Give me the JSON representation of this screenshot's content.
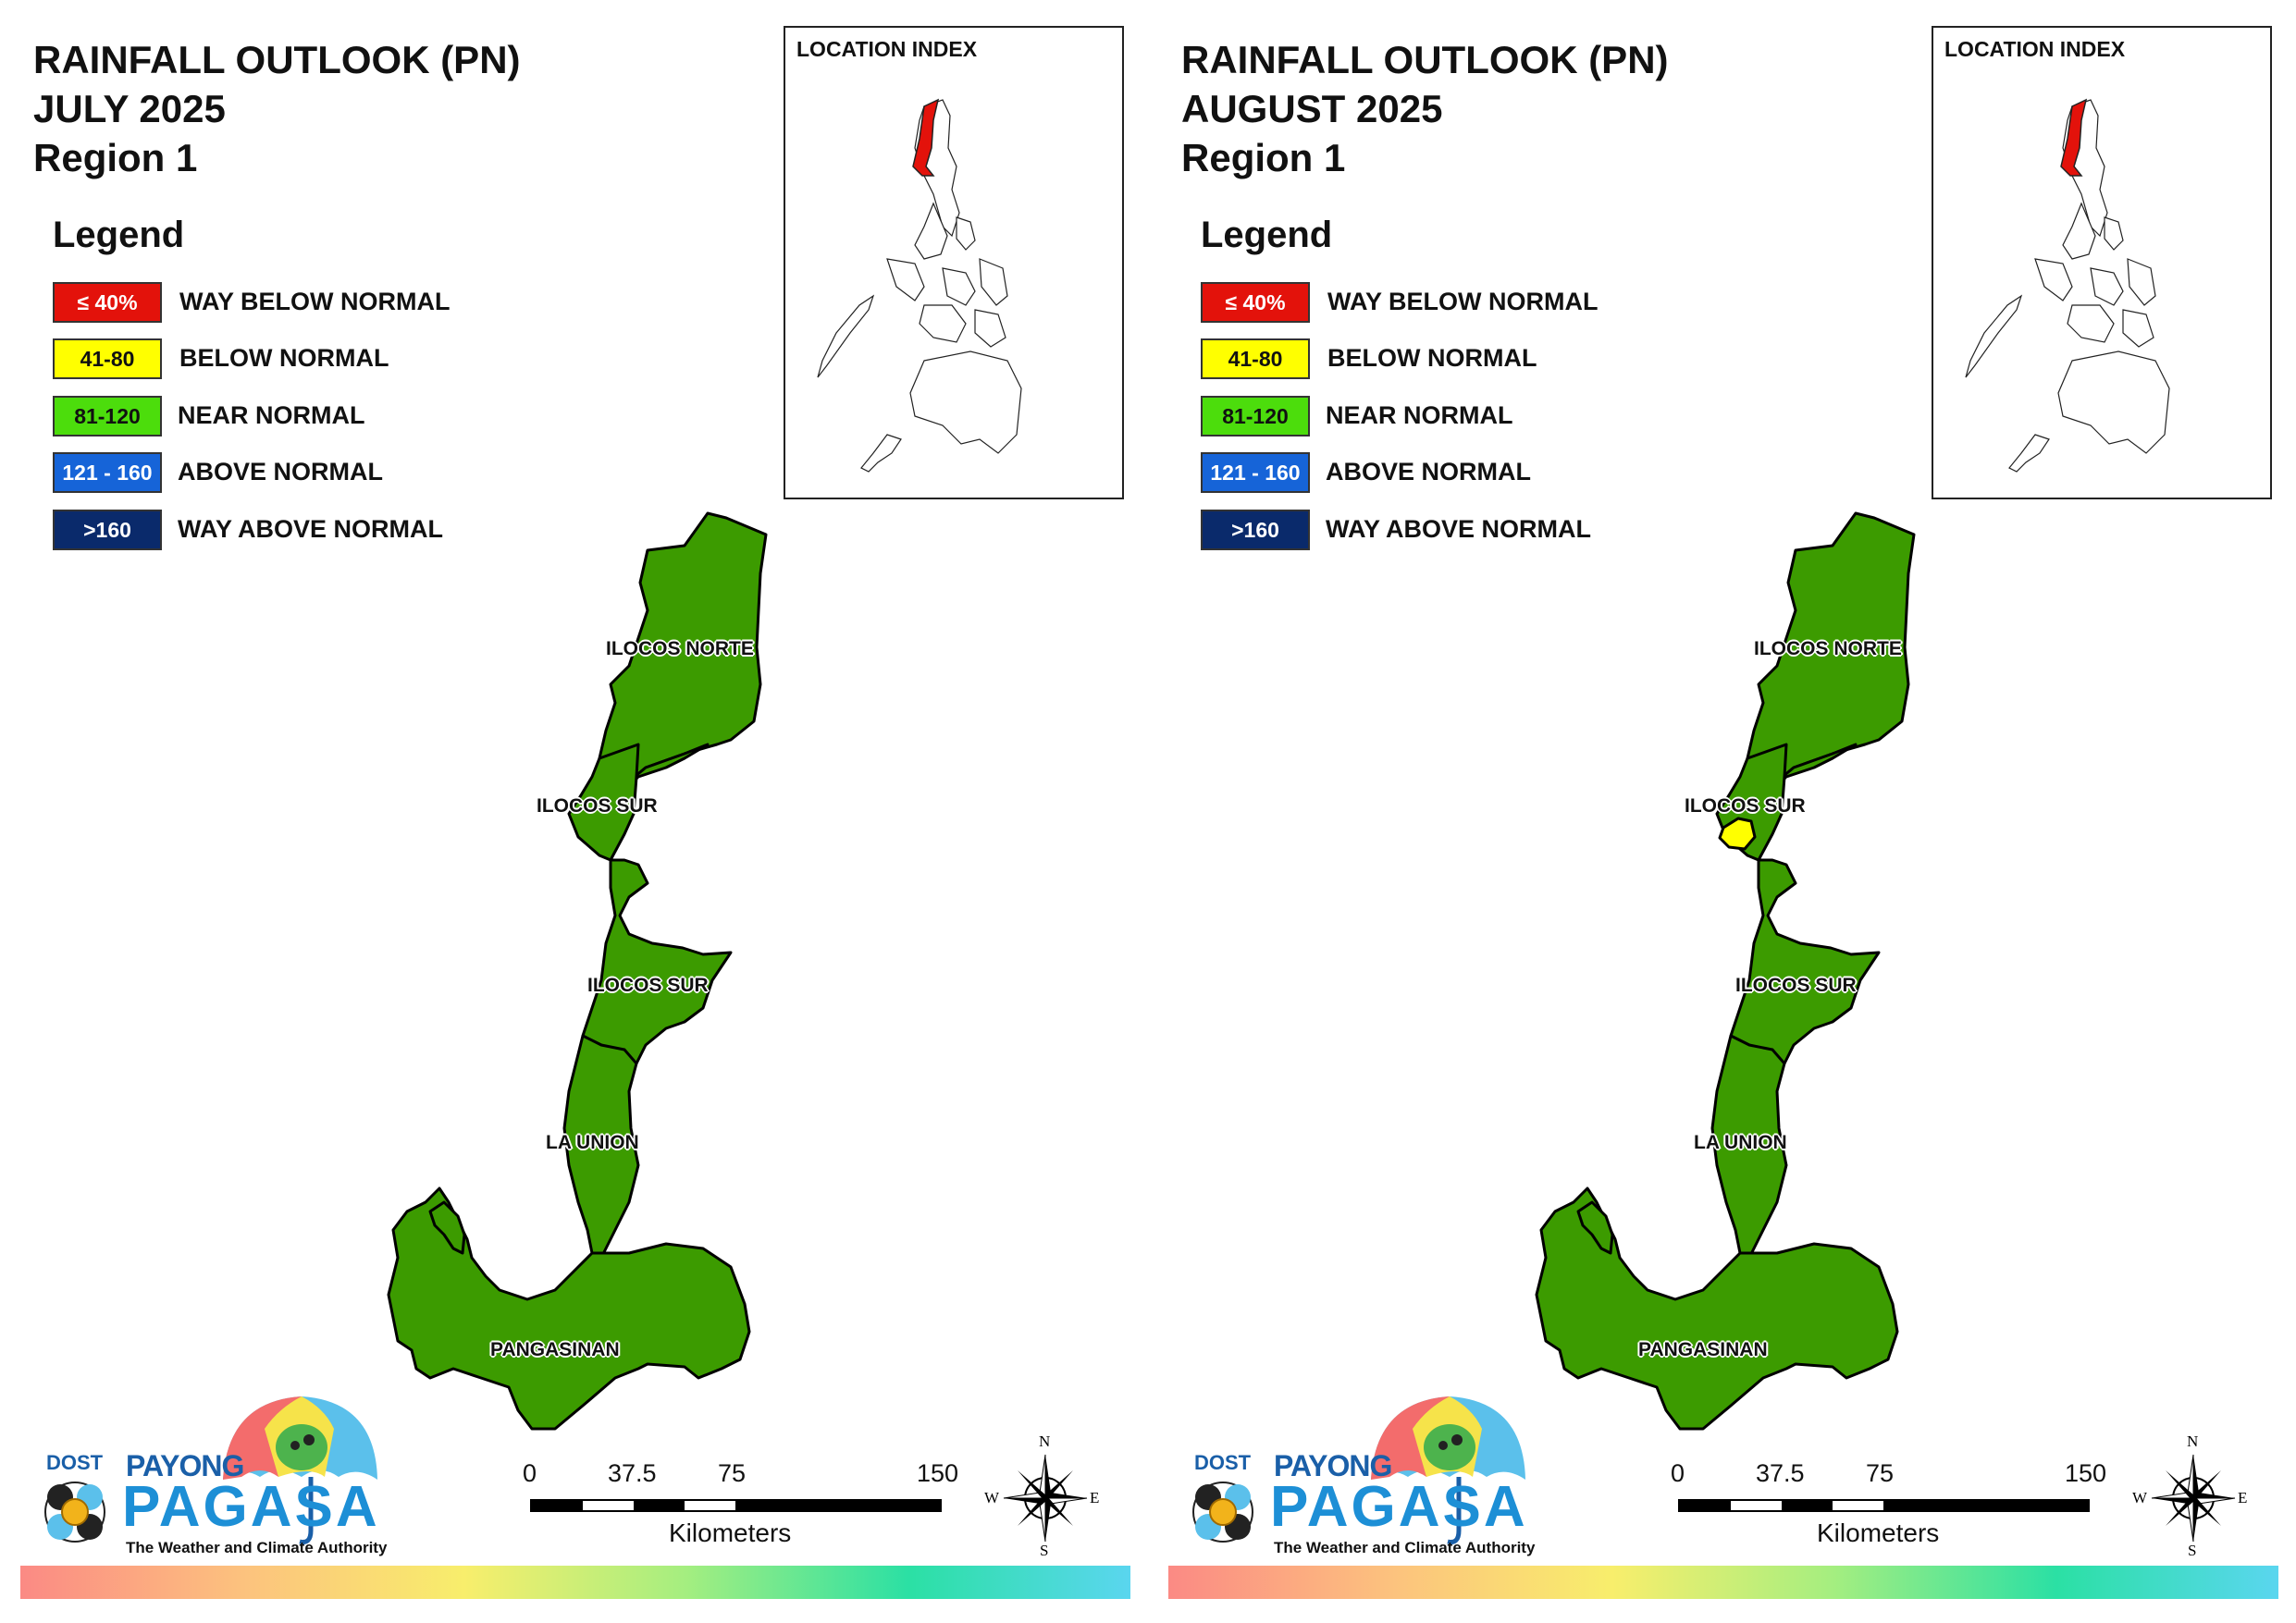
{
  "panels": [
    {
      "title_line1": "RAINFALL OUTLOOK (PN)",
      "title_line2": "JULY 2025",
      "title_line3": "Region 1",
      "has_yellow_patch": false
    },
    {
      "title_line1": "RAINFALL OUTLOOK (PN)",
      "title_line2": "AUGUST 2025",
      "title_line3": "Region 1",
      "has_yellow_patch": true
    }
  ],
  "legend": {
    "title": "Legend",
    "items": [
      {
        "range": "≤ 40%",
        "label": "WAY BELOW NORMAL",
        "color": "#e3120b",
        "text_color": "#ffffff"
      },
      {
        "range": "41-80",
        "label": "BELOW NORMAL",
        "color": "#ffff00",
        "text_color": "#111111"
      },
      {
        "range": "81-120",
        "label": "NEAR NORMAL",
        "color": "#4cdd0c",
        "text_color": "#111111"
      },
      {
        "range": "121 - 160",
        "label": "ABOVE NORMAL",
        "color": "#1664d8",
        "text_color": "#ffffff"
      },
      {
        "range": ">160",
        "label": "WAY ABOVE NORMAL",
        "color": "#0a2a6b",
        "text_color": "#ffffff"
      }
    ]
  },
  "inset": {
    "title": "LOCATION INDEX",
    "highlight_color": "#e3120b"
  },
  "provinces": {
    "ilocos_norte": "ILOCOS NORTE",
    "ilocos_sur_north": "ILOCOS SUR",
    "ilocos_sur_south": "ILOCOS SUR",
    "la_union": "LA UNION",
    "pangasinan": "PANGASINAN"
  },
  "map_colors": {
    "province_fill": "#3c9b00",
    "below_normal_patch": "#ffff00"
  },
  "scale": {
    "ticks": [
      "0",
      "37.5",
      "75",
      "150"
    ],
    "unit": "Kilometers"
  },
  "compass": {
    "n": "N",
    "s": "S",
    "e": "E",
    "w": "W"
  },
  "logo": {
    "dost": "DOST",
    "payong": "PAYONG",
    "pagasa": "PAGASA",
    "tagline": "The Weather and Climate Authority"
  }
}
